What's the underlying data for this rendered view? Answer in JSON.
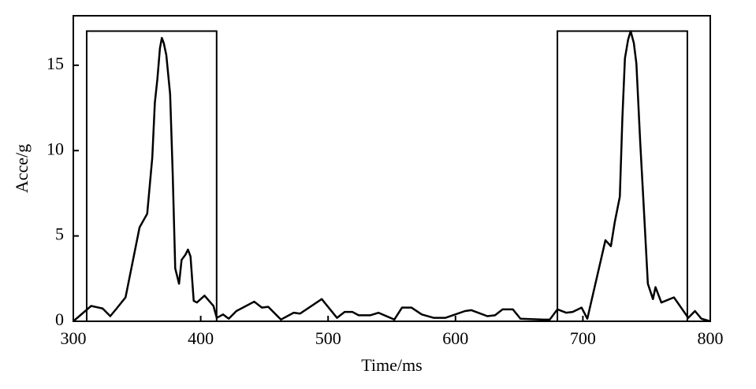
{
  "chart_data": {
    "type": "line",
    "x_label": "Time/ms",
    "y_label": "Acce/g",
    "x": [
      300,
      314,
      323,
      329,
      334,
      341,
      352,
      358,
      362,
      364,
      366,
      368,
      369.5,
      371,
      373,
      376,
      378,
      380,
      383,
      385,
      388,
      390,
      392,
      394.5,
      397,
      403,
      410,
      412.6,
      417.6,
      422,
      428,
      442,
      448,
      453,
      463,
      473,
      478,
      495,
      507,
      513,
      519,
      524,
      533,
      539.5,
      552,
      558,
      565.5,
      573.5,
      583,
      592,
      607.5,
      612.5,
      625,
      631,
      637,
      645,
      651,
      669,
      674,
      680,
      687,
      692,
      699,
      703.5,
      717.7,
      722,
      725,
      729,
      731,
      733,
      735.5,
      737.5,
      740,
      742,
      745,
      748,
      751,
      755,
      757,
      761.6,
      771.5,
      782.7,
      788,
      793,
      800
    ],
    "series": [
      {
        "color": "#000000",
        "values": [
          0,
          0.9,
          0.75,
          0.3,
          0.75,
          1.4,
          5.5,
          6.3,
          9.6,
          12.8,
          14.2,
          16,
          16.6,
          16.3,
          15.6,
          13.3,
          8.7,
          3.1,
          2.2,
          3.6,
          3.9,
          4.2,
          3.8,
          1.2,
          1.1,
          1.5,
          0.9,
          0.2,
          0.4,
          0.15,
          0.6,
          1.15,
          0.8,
          0.85,
          0.1,
          0.5,
          0.45,
          1.3,
          0.2,
          0.55,
          0.55,
          0.35,
          0.35,
          0.5,
          0.1,
          0.8,
          0.8,
          0.4,
          0.2,
          0.2,
          0.6,
          0.65,
          0.3,
          0.35,
          0.7,
          0.7,
          0.15,
          0.1,
          0.1,
          0.7,
          0.5,
          0.55,
          0.8,
          0.15,
          4.75,
          4.4,
          5.8,
          7.3,
          11.9,
          15.4,
          16.5,
          17,
          16.3,
          15.1,
          10.5,
          6.4,
          2.2,
          1.3,
          2.0,
          1.1,
          1.4,
          0.2,
          0.6,
          0.15,
          0
        ]
      }
    ],
    "regions": [
      {
        "x": [
          310.5,
          412.5
        ],
        "top": 17
      },
      {
        "x": [
          680,
          782
        ],
        "top": 17
      }
    ],
    "xlim": [
      300,
      800
    ],
    "xticks": [
      300,
      400,
      500,
      600,
      700,
      800
    ],
    "ylim": [
      0,
      17.9
    ],
    "yticks": [
      0,
      5,
      10,
      15
    ]
  }
}
